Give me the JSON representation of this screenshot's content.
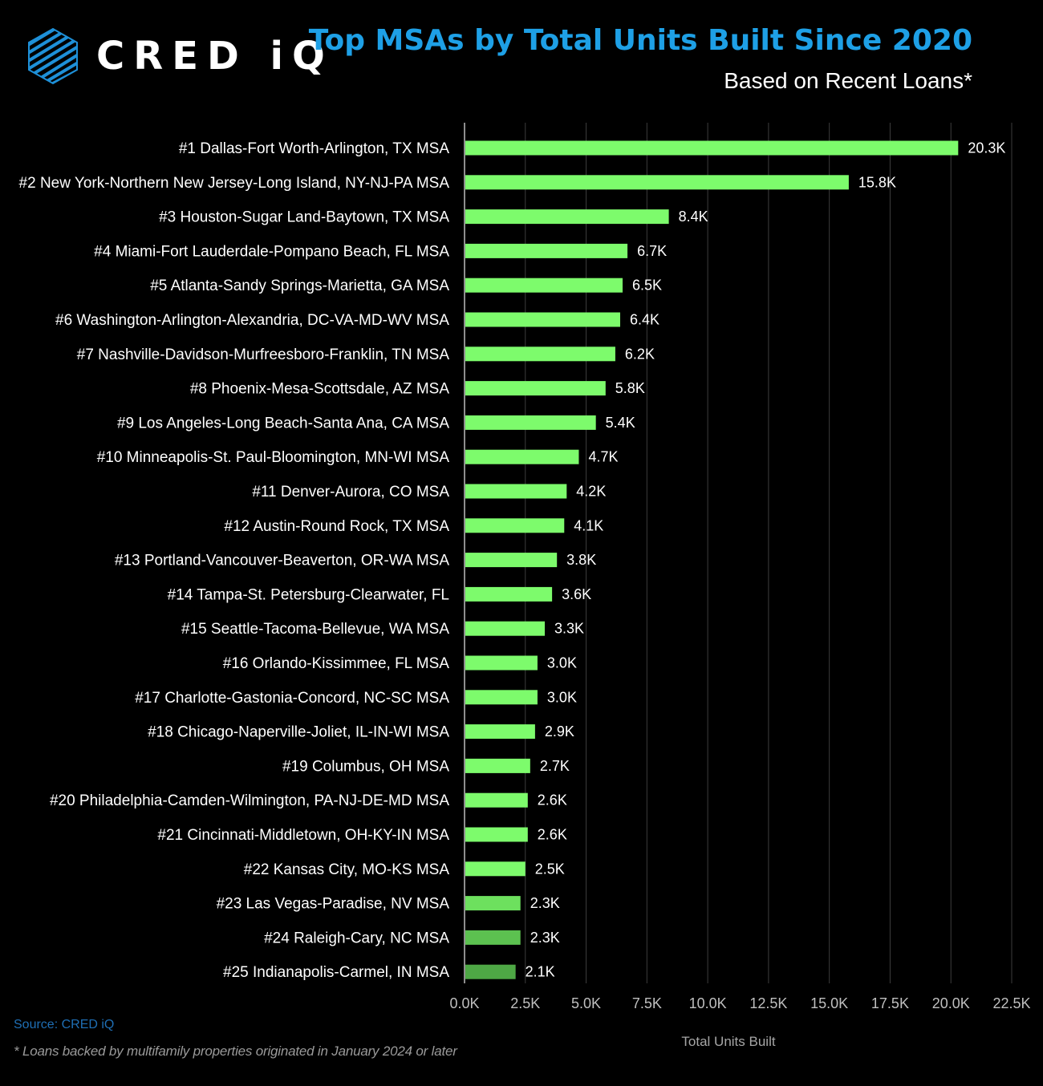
{
  "brand": {
    "name": "CRED iQ",
    "logo_icon": "hexagon-stripes-icon"
  },
  "header": {
    "title": "Top MSAs by Total Units Built Since 2020",
    "subtitle": "Based on Recent Loans*"
  },
  "footer": {
    "source": "Source: CRED iQ",
    "footnote": "* Loans backed by multifamily properties originated in January 2024 or later"
  },
  "colors": {
    "bar": "#7dfb6c",
    "bar_fading": [
      "#6de05e",
      "#5cc150",
      "#4ea845"
    ],
    "title": "#1ea0e6",
    "gridline": "#3d3d3d"
  },
  "chart_data": {
    "type": "bar",
    "orientation": "horizontal",
    "title": "Top MSAs by Total Units Built Since 2020",
    "subtitle": "Based on Recent Loans*",
    "xlabel": "Total Units Built",
    "ylabel": "",
    "xlim": [
      0,
      22500
    ],
    "xticks": [
      0,
      2500,
      5000,
      7500,
      10000,
      12500,
      15000,
      17500,
      20000,
      22500
    ],
    "xtick_labels": [
      "0.0K",
      "2.5K",
      "5.0K",
      "7.5K",
      "10.0K",
      "12.5K",
      "15.0K",
      "17.5K",
      "20.0K",
      "22.5K"
    ],
    "grid": "vertical",
    "legend": "none",
    "categories": [
      "#1 Dallas-Fort Worth-Arlington, TX MSA",
      "#2 New York-Northern New Jersey-Long Island, NY-NJ-PA MSA",
      "#3 Houston-Sugar Land-Baytown, TX MSA",
      "#4 Miami-Fort Lauderdale-Pompano Beach, FL MSA",
      "#5 Atlanta-Sandy Springs-Marietta, GA MSA",
      "#6 Washington-Arlington-Alexandria, DC-VA-MD-WV MSA",
      "#7 Nashville-Davidson-Murfreesboro-Franklin, TN MSA",
      "#8 Phoenix-Mesa-Scottsdale, AZ MSA",
      "#9 Los Angeles-Long Beach-Santa Ana, CA MSA",
      "#10 Minneapolis-St. Paul-Bloomington, MN-WI MSA",
      "#11 Denver-Aurora, CO MSA",
      "#12 Austin-Round Rock, TX MSA",
      "#13 Portland-Vancouver-Beaverton, OR-WA MSA",
      "#14 Tampa-St. Petersburg-Clearwater, FL",
      "#15 Seattle-Tacoma-Bellevue, WA MSA",
      "#16 Orlando-Kissimmee, FL MSA",
      "#17 Charlotte-Gastonia-Concord, NC-SC MSA",
      "#18 Chicago-Naperville-Joliet, IL-IN-WI MSA",
      "#19 Columbus, OH MSA",
      "#20 Philadelphia-Camden-Wilmington, PA-NJ-DE-MD MSA",
      "#21 Cincinnati-Middletown, OH-KY-IN MSA",
      "#22 Kansas City, MO-KS MSA",
      "#23 Las Vegas-Paradise, NV MSA",
      "#24 Raleigh-Cary, NC MSA",
      "#25 Indianapolis-Carmel, IN MSA"
    ],
    "values": [
      20300,
      15800,
      8400,
      6700,
      6500,
      6400,
      6200,
      5800,
      5400,
      4700,
      4200,
      4100,
      3800,
      3600,
      3300,
      3000,
      3000,
      2900,
      2700,
      2600,
      2600,
      2500,
      2300,
      2300,
      2100
    ],
    "data_labels": [
      "20.3K",
      "15.8K",
      "8.4K",
      "6.7K",
      "6.5K",
      "6.4K",
      "6.2K",
      "5.8K",
      "5.4K",
      "4.7K",
      "4.2K",
      "4.1K",
      "3.8K",
      "3.6K",
      "3.3K",
      "3.0K",
      "3.0K",
      "2.9K",
      "2.7K",
      "2.6K",
      "2.6K",
      "2.5K",
      "2.3K",
      "2.3K",
      "2.1K"
    ]
  }
}
